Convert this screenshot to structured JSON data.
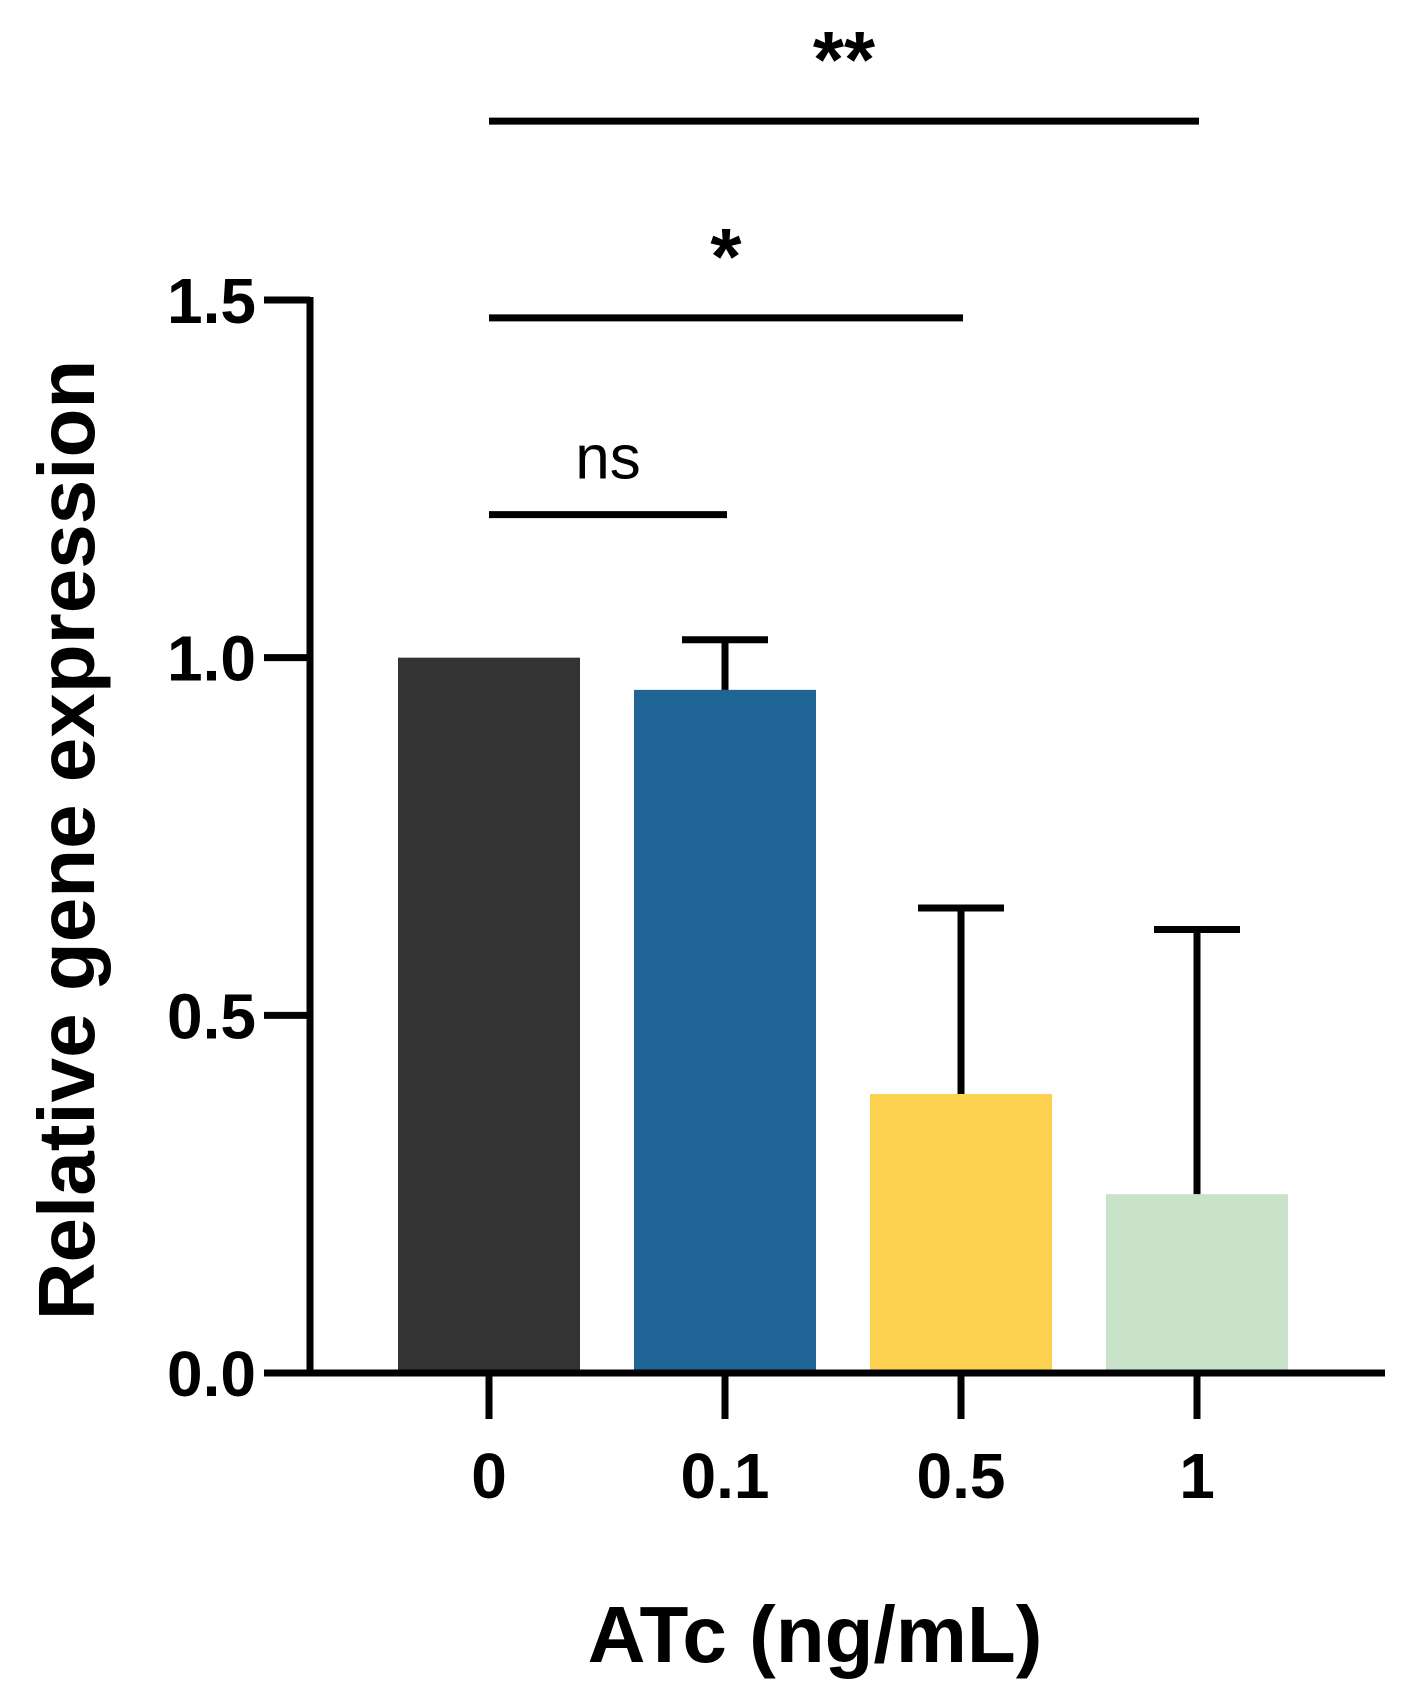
{
  "chart_data": {
    "type": "bar",
    "xlabel": "ATc (ng/mL)",
    "ylabel": "Relative gene expression",
    "ylim": [
      0,
      1.5
    ],
    "yticks": [
      "0.0",
      "0.5",
      "1.0",
      "1.5"
    ],
    "categories": [
      "0",
      "0.1",
      "0.5",
      "1"
    ],
    "values": [
      1.0,
      0.955,
      0.39,
      0.25
    ],
    "error_upper": [
      0.0,
      0.07,
      0.26,
      0.37
    ],
    "colors": [
      "#333333",
      "#1e6494",
      "#fbd14f",
      "#c9e3cb"
    ],
    "grid": false,
    "legend": "none",
    "comparisons": [
      {
        "from": "0",
        "to": "0.1",
        "label": "ns",
        "level": 1.2
      },
      {
        "from": "0",
        "to": "0.5",
        "label": "*",
        "level": 1.475
      },
      {
        "from": "0",
        "to": "1",
        "label": "**",
        "level": 1.75
      }
    ]
  }
}
